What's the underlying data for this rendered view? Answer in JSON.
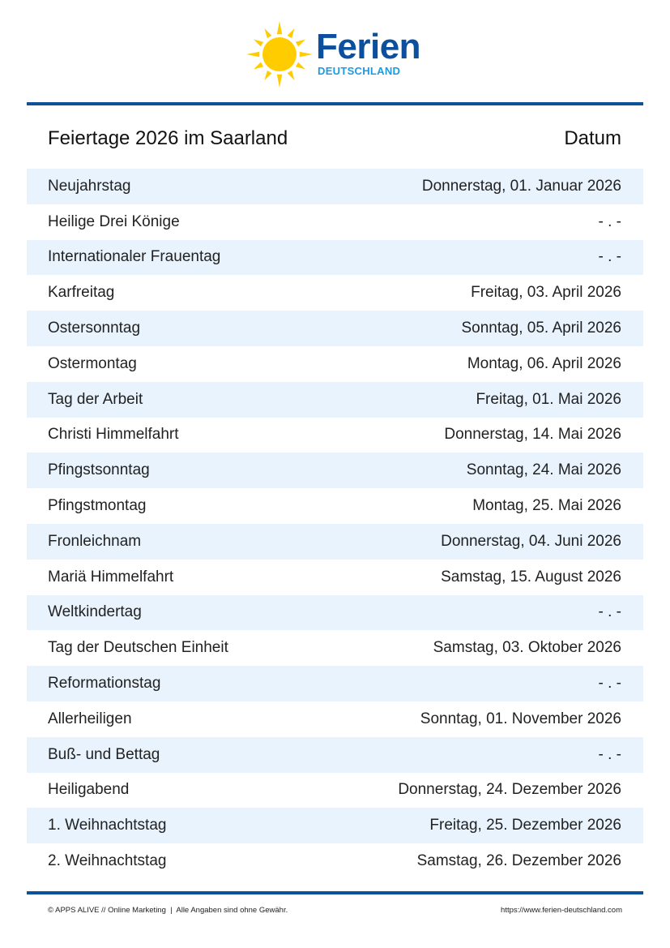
{
  "logo": {
    "brand": "Ferien",
    "sub": "DEUTSCHLAND",
    "colors": {
      "sun": "#ffcc00",
      "brand": "#0c4f9c",
      "sub": "#1c9be0"
    }
  },
  "header": {
    "title": "Feiertage 2026 im Saarland",
    "date_col": "Datum"
  },
  "rows": [
    {
      "name": "Neujahrstag",
      "date": "Donnerstag, 01. Januar 2026"
    },
    {
      "name": "Heilige Drei Könige",
      "date": "- . -"
    },
    {
      "name": "Internationaler Frauentag",
      "date": "- . -"
    },
    {
      "name": "Karfreitag",
      "date": "Freitag, 03. April 2026"
    },
    {
      "name": "Ostersonntag",
      "date": "Sonntag, 05. April 2026"
    },
    {
      "name": "Ostermontag",
      "date": "Montag, 06. April 2026"
    },
    {
      "name": "Tag der Arbeit",
      "date": "Freitag, 01. Mai 2026"
    },
    {
      "name": "Christi Himmelfahrt",
      "date": "Donnerstag, 14. Mai 2026"
    },
    {
      "name": "Pfingstsonntag",
      "date": "Sonntag, 24. Mai 2026"
    },
    {
      "name": "Pfingstmontag",
      "date": "Montag, 25. Mai 2026"
    },
    {
      "name": "Fronleichnam",
      "date": "Donnerstag, 04. Juni 2026"
    },
    {
      "name": "Mariä Himmelfahrt",
      "date": "Samstag, 15. August 2026"
    },
    {
      "name": "Weltkindertag",
      "date": "- . -"
    },
    {
      "name": "Tag der Deutschen Einheit",
      "date": "Samstag, 03. Oktober 2026"
    },
    {
      "name": "Reformationstag",
      "date": "- . -"
    },
    {
      "name": "Allerheiligen",
      "date": "Sonntag, 01. November 2026"
    },
    {
      "name": "Buß- und Bettag",
      "date": "- . -"
    },
    {
      "name": "Heiligabend",
      "date": "Donnerstag, 24. Dezember 2026"
    },
    {
      "name": "1. Weihnachtstag",
      "date": "Freitag, 25. Dezember 2026"
    },
    {
      "name": "2. Weihnachtstag",
      "date": "Samstag, 26. Dezember 2026"
    }
  ],
  "footer": {
    "left": "© APPS ALIVE // Online Marketing  |  Alle Angaben sind ohne Gewähr.",
    "right": "https://www.ferien-deutschland.com"
  }
}
